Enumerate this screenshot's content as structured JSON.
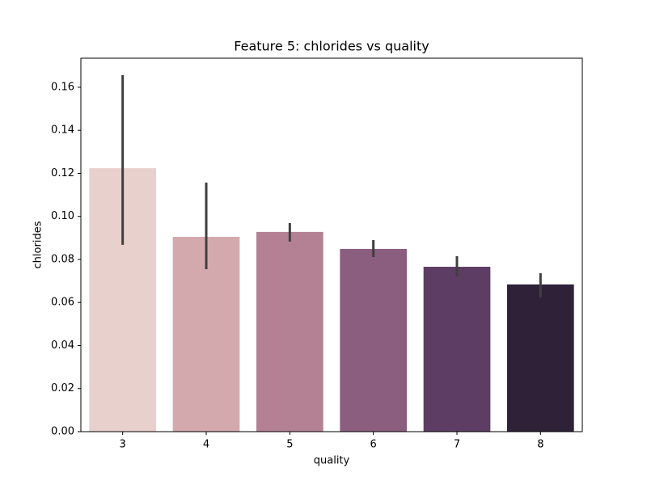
{
  "chart_data": {
    "type": "bar",
    "title": "Feature 5: chlorides vs quality",
    "x_label": "quality",
    "y_label": "chlorides",
    "categories": [
      "3",
      "4",
      "5",
      "6",
      "7",
      "8"
    ],
    "values": [
      0.1224,
      0.0905,
      0.0928,
      0.0849,
      0.0766,
      0.0684
    ],
    "error_low": [
      0.0868,
      0.0755,
      0.0883,
      0.0811,
      0.0721,
      0.0623
    ],
    "error_high": [
      0.1656,
      0.1157,
      0.0969,
      0.089,
      0.0815,
      0.0736
    ],
    "colors": [
      "#e8d0cc",
      "#d4a9ae",
      "#b38193",
      "#8b5e80",
      "#5d3d63",
      "#2e2138"
    ],
    "error_color": "#3f3f3f",
    "ylim": [
      0,
      0.1735
    ],
    "yticks": [
      {
        "value": 0,
        "label": "0.00"
      },
      {
        "value": 0.02,
        "label": "0.02"
      },
      {
        "value": 0.04,
        "label": "0.04"
      },
      {
        "value": 0.06,
        "label": "0.06"
      },
      {
        "value": 0.08,
        "label": "0.08"
      },
      {
        "value": 0.1,
        "label": "0.10"
      },
      {
        "value": 0.12,
        "label": "0.12"
      },
      {
        "value": 0.14,
        "label": "0.14"
      },
      {
        "value": 0.16,
        "label": "0.16"
      }
    ],
    "grid": false
  }
}
